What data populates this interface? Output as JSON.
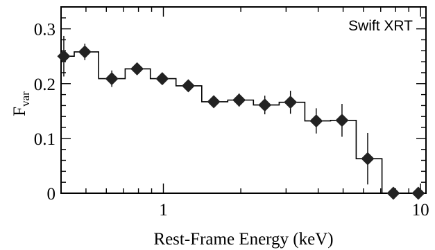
{
  "chart_data": {
    "type": "scatter",
    "title": "",
    "xlabel": "Rest-Frame Energy (keV)",
    "ylabel_main": "F",
    "ylabel_sub": "var",
    "x_scale": "log",
    "xlim": [
      0.4,
      10.5
    ],
    "ylim": [
      0,
      0.34
    ],
    "x_tick_labels": [
      {
        "value": 1,
        "text": "1"
      },
      {
        "value": 10,
        "text": "10"
      }
    ],
    "y_tick_labels": [
      {
        "value": 0,
        "text": "0"
      },
      {
        "value": 0.1,
        "text": "0.1"
      },
      {
        "value": 0.2,
        "text": "0.2"
      },
      {
        "value": 0.3,
        "text": "0.3"
      }
    ],
    "annotation": "Swift XRT",
    "grid": false,
    "marker": "diamond",
    "color": "#222222",
    "series": [
      {
        "points": [
          {
            "x": 0.41,
            "y": 0.25,
            "err": 0.037,
            "x_lo": 0.39,
            "x_hi": 0.45
          },
          {
            "x": 0.495,
            "y": 0.258,
            "err": 0.015,
            "x_lo": 0.45,
            "x_hi": 0.56
          },
          {
            "x": 0.63,
            "y": 0.209,
            "err": 0.015,
            "x_lo": 0.56,
            "x_hi": 0.71
          },
          {
            "x": 0.79,
            "y": 0.227,
            "err": 0.01,
            "x_lo": 0.71,
            "x_hi": 0.89
          },
          {
            "x": 0.99,
            "y": 0.209,
            "err": 0.01,
            "x_lo": 0.89,
            "x_hi": 1.12
          },
          {
            "x": 1.25,
            "y": 0.196,
            "err": 0.01,
            "x_lo": 1.12,
            "x_hi": 1.41
          },
          {
            "x": 1.57,
            "y": 0.167,
            "err": 0.01,
            "x_lo": 1.41,
            "x_hi": 1.78
          },
          {
            "x": 1.97,
            "y": 0.17,
            "err": 0.012,
            "x_lo": 1.78,
            "x_hi": 2.24
          },
          {
            "x": 2.48,
            "y": 0.161,
            "err": 0.017,
            "x_lo": 2.24,
            "x_hi": 2.82
          },
          {
            "x": 3.12,
            "y": 0.166,
            "err": 0.021,
            "x_lo": 2.82,
            "x_hi": 3.55
          },
          {
            "x": 3.93,
            "y": 0.132,
            "err": 0.023,
            "x_lo": 3.55,
            "x_hi": 4.47
          },
          {
            "x": 4.95,
            "y": 0.133,
            "err": 0.03,
            "x_lo": 4.47,
            "x_hi": 5.62
          },
          {
            "x": 6.23,
            "y": 0.063,
            "err": 0.047,
            "x_lo": 5.62,
            "x_hi": 7.08
          },
          {
            "x": 7.84,
            "y": 0.0,
            "err": 0.0,
            "x_lo": 7.08,
            "x_hi": 8.91
          },
          {
            "x": 9.8,
            "y": 0.0,
            "err": 0.0,
            "x_lo": 8.91,
            "x_hi": 10.5
          }
        ]
      }
    ]
  }
}
